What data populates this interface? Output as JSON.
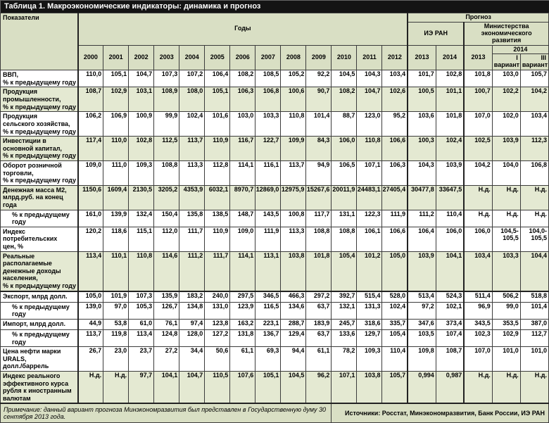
{
  "title": "Таблица 1. Макроэкономические индикаторы: динамика и прогноз",
  "colors": {
    "title_bg": "#141414",
    "title_text": "#ffffff",
    "header_bg": "#d9dfc4",
    "row_shade_bg": "#e4e9d2",
    "row_plain_bg": "#ffffff",
    "border": "#3c3c3c"
  },
  "header": {
    "indicators": "Показатели",
    "years_group": "Годы",
    "forecast_group": "Прогноз",
    "forecast_ieran": "ИЭ РАН",
    "forecast_ministry": "Министерства экономического развития",
    "years": [
      "2000",
      "2001",
      "2002",
      "2003",
      "2004",
      "2005",
      "2006",
      "2007",
      "2008",
      "2009",
      "2010",
      "2011",
      "2012"
    ],
    "ieran_year_1": "2013",
    "ieran_year_2": "2014",
    "ministry_year_1": "2013",
    "ministry_year_2": "2014",
    "variant_1": "I\nвариант",
    "variant_2": "III\nвариант"
  },
  "rows": [
    {
      "label": "ВВП,\n% к предыдущему году",
      "indent": false,
      "shade": false,
      "thickTop": false,
      "values": [
        "110,0",
        "105,1",
        "104,7",
        "107,3",
        "107,2",
        "106,4",
        "108,2",
        "108,5",
        "105,2",
        "92,2",
        "104,5",
        "104,3",
        "103,4",
        "101,7",
        "102,8",
        "101,8",
        "103,0",
        "105,7"
      ]
    },
    {
      "label": "Продукция\nпромышленности,\n% к предыдущему году",
      "indent": false,
      "shade": true,
      "thickTop": false,
      "values": [
        "108,7",
        "102,9",
        "103,1",
        "108,9",
        "108,0",
        "105,1",
        "106,3",
        "106,8",
        "100,6",
        "90,7",
        "108,2",
        "104,7",
        "102,6",
        "100,5",
        "101,1",
        "100,7",
        "102,2",
        "104,2"
      ]
    },
    {
      "label": "Продукция\nсельского хозяйства,\n% к предыдущему году",
      "indent": false,
      "shade": false,
      "thickTop": false,
      "values": [
        "106,2",
        "106,9",
        "100,9",
        "99,9",
        "102,4",
        "101,6",
        "103,0",
        "103,3",
        "110,8",
        "101,4",
        "88,7",
        "123,0",
        "95,2",
        "103,6",
        "101,8",
        "107,0",
        "102,0",
        "103,4"
      ]
    },
    {
      "label": "Инвестиции в\nосновной капитал,\n% к предыдущему году",
      "indent": false,
      "shade": true,
      "thickTop": false,
      "values": [
        "117,4",
        "110,0",
        "102,8",
        "112,5",
        "113,7",
        "110,9",
        "116,7",
        "122,7",
        "109,9",
        "84,3",
        "106,0",
        "110,8",
        "106,6",
        "100,3",
        "102,4",
        "102,5",
        "103,9",
        "112,3"
      ]
    },
    {
      "label": "Оборот розничной\nторговли,\n% к предыдущему году",
      "indent": false,
      "shade": false,
      "thickTop": false,
      "values": [
        "109,0",
        "111,0",
        "109,3",
        "108,8",
        "113,3",
        "112,8",
        "114,1",
        "116,1",
        "113,7",
        "94,9",
        "106,5",
        "107,1",
        "106,3",
        "104,3",
        "103,9",
        "104,2",
        "104,0",
        "106,8"
      ]
    },
    {
      "label": "Денежная масса М2,\nмлрд.руб. на конец года",
      "indent": false,
      "shade": true,
      "thickTop": false,
      "values": [
        "1150,6",
        "1609,4",
        "2130,5",
        "3205,2",
        "4353,9",
        "6032,1",
        "8970,7",
        "12869,0",
        "12975,9",
        "15267,6",
        "20011,9",
        "24483,1",
        "27405,4",
        "30477,8",
        "33647,5",
        "Н.д.",
        "Н.д.",
        "Н.д."
      ]
    },
    {
      "label": "% к предыдущему году",
      "indent": true,
      "shade": false,
      "thickTop": false,
      "values": [
        "161,0",
        "139,9",
        "132,4",
        "150,4",
        "135,8",
        "138,5",
        "148,7",
        "143,5",
        "100,8",
        "117,7",
        "131,1",
        "122,3",
        "111,9",
        "111,2",
        "110,4",
        "Н.д.",
        "Н.д.",
        "Н.д."
      ]
    },
    {
      "label": "Индекс потребительских\nцен, %",
      "indent": false,
      "shade": false,
      "thickTop": false,
      "values": [
        "120,2",
        "118,6",
        "115,1",
        "112,0",
        "111,7",
        "110,9",
        "109,0",
        "111,9",
        "113,3",
        "108,8",
        "108,8",
        "106,1",
        "106,6",
        "106,4",
        "106,0",
        "106,0",
        "104,5-105,5",
        "104,0-105,5"
      ]
    },
    {
      "label": "Реальные\nрасполагаемые\nденежные доходы\nнаселения,\n% к предыдущему году",
      "indent": false,
      "shade": true,
      "thickTop": false,
      "values": [
        "113,4",
        "110,1",
        "110,8",
        "114,6",
        "111,2",
        "111,7",
        "114,1",
        "113,1",
        "103,8",
        "101,8",
        "105,4",
        "101,2",
        "105,0",
        "103,9",
        "104,1",
        "103,4",
        "103,3",
        "104,4"
      ]
    },
    {
      "label": "Экспорт, млрд долл.",
      "indent": false,
      "shade": false,
      "thickTop": true,
      "values": [
        "105,0",
        "101,9",
        "107,3",
        "135,9",
        "183,2",
        "240,0",
        "297,5",
        "346,5",
        "466,3",
        "297,2",
        "392,7",
        "515,4",
        "528,0",
        "513,4",
        "524,3",
        "511,4",
        "506,2",
        "518,8"
      ]
    },
    {
      "label": "% к предыдущему году",
      "indent": true,
      "shade": false,
      "thickTop": false,
      "values": [
        "139,0",
        "97,0",
        "105,3",
        "126,7",
        "134,8",
        "131,0",
        "123,9",
        "116,5",
        "134,6",
        "63,7",
        "132,1",
        "131,3",
        "102,4",
        "97,2",
        "102,1",
        "96,9",
        "99,0",
        "101,4"
      ]
    },
    {
      "label": "Импорт, млрд долл.",
      "indent": false,
      "shade": false,
      "thickTop": false,
      "values": [
        "44,9",
        "53,8",
        "61,0",
        "76,1",
        "97,4",
        "123,8",
        "163,2",
        "223,1",
        "288,7",
        "183,9",
        "245,7",
        "318,6",
        "335,7",
        "347,6",
        "373,4",
        "343,5",
        "353,5",
        "387,0"
      ]
    },
    {
      "label": "% к предыдущему году",
      "indent": true,
      "shade": false,
      "thickTop": false,
      "values": [
        "113,7",
        "119,8",
        "113,4",
        "124,8",
        "128,0",
        "127,2",
        "131,8",
        "136,7",
        "129,4",
        "63,7",
        "133,6",
        "129,7",
        "105,4",
        "103,5",
        "107,4",
        "102,3",
        "102,9",
        "112,7"
      ]
    },
    {
      "label": "Цена нефти марки URALS,\nдолл./баррель",
      "indent": false,
      "shade": false,
      "thickTop": false,
      "values": [
        "26,7",
        "23,0",
        "23,7",
        "27,2",
        "34,4",
        "50,6",
        "61,1",
        "69,3",
        "94,4",
        "61,1",
        "78,2",
        "109,3",
        "110,4",
        "109,8",
        "108,7",
        "107,0",
        "101,0",
        "101,0"
      ]
    },
    {
      "label": "Индекс реального\nэффективного курса\nрубля к иностранным\nвалютам",
      "indent": false,
      "shade": true,
      "thickTop": false,
      "values": [
        "Н.д.",
        "Н.д.",
        "97,7",
        "104,1",
        "104,7",
        "110,5",
        "107,6",
        "105,1",
        "104,5",
        "96,2",
        "107,1",
        "103,8",
        "105,7",
        "0,994",
        "0,987",
        "Н.д.",
        "Н.д.",
        "Н.д."
      ]
    }
  ],
  "footer": {
    "note": "Примечание: данный вариант прогноза Минэкономразвития был представлен в Государственную думу 30 сентября 2013 года.",
    "sources": "Источники: Росстат, Минэкономразвития, Банк России, ИЭ РАН"
  }
}
